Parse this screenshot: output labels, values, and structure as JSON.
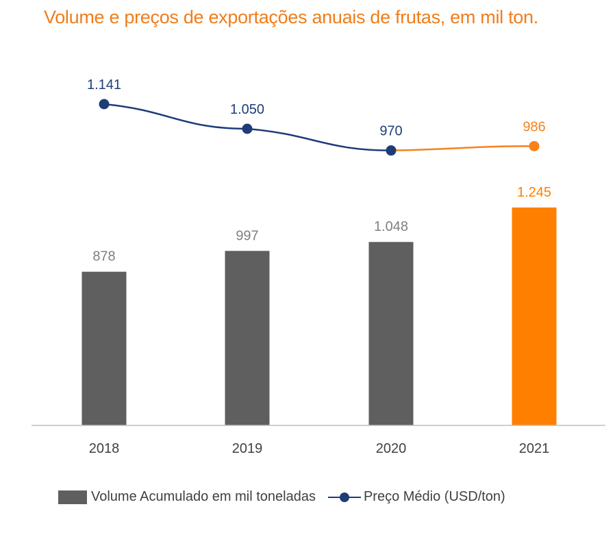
{
  "chart_data": {
    "type": "bar",
    "title": "Volume e preços de exportações anuais de frutas, em mil ton.",
    "categories": [
      "2018",
      "2019",
      "2020",
      "2021"
    ],
    "series": [
      {
        "name": "Volume Acumulado em mil toneladas",
        "type": "bar",
        "values": [
          878,
          997,
          1048,
          1245
        ],
        "labels": [
          "878",
          "997",
          "1.048",
          "1.245"
        ],
        "colors": [
          "#5f5f5f",
          "#5f5f5f",
          "#5f5f5f",
          "#ff7f00"
        ]
      },
      {
        "name": "Preço Médio (USD/ton)",
        "type": "line",
        "values": [
          1141,
          1050,
          970,
          986
        ],
        "labels": [
          "1.141",
          "1.050",
          "970",
          "986"
        ],
        "colors": [
          "#1f3c78",
          "#1f3c78",
          "#1f3c78",
          "#f5821f"
        ]
      }
    ],
    "bar_ylim": [
      0,
      1300
    ],
    "line_ylim": [
      0,
      1300
    ],
    "grid": false,
    "legend_position": "bottom"
  },
  "colors": {
    "title": "#f07d1a",
    "bar_default": "#5f5f5f",
    "bar_highlight": "#ff7f00",
    "line_default": "#1f3c78",
    "line_highlight": "#f5821f",
    "bar_label": "#7f7f7f",
    "axis": "#bfbfbf"
  }
}
